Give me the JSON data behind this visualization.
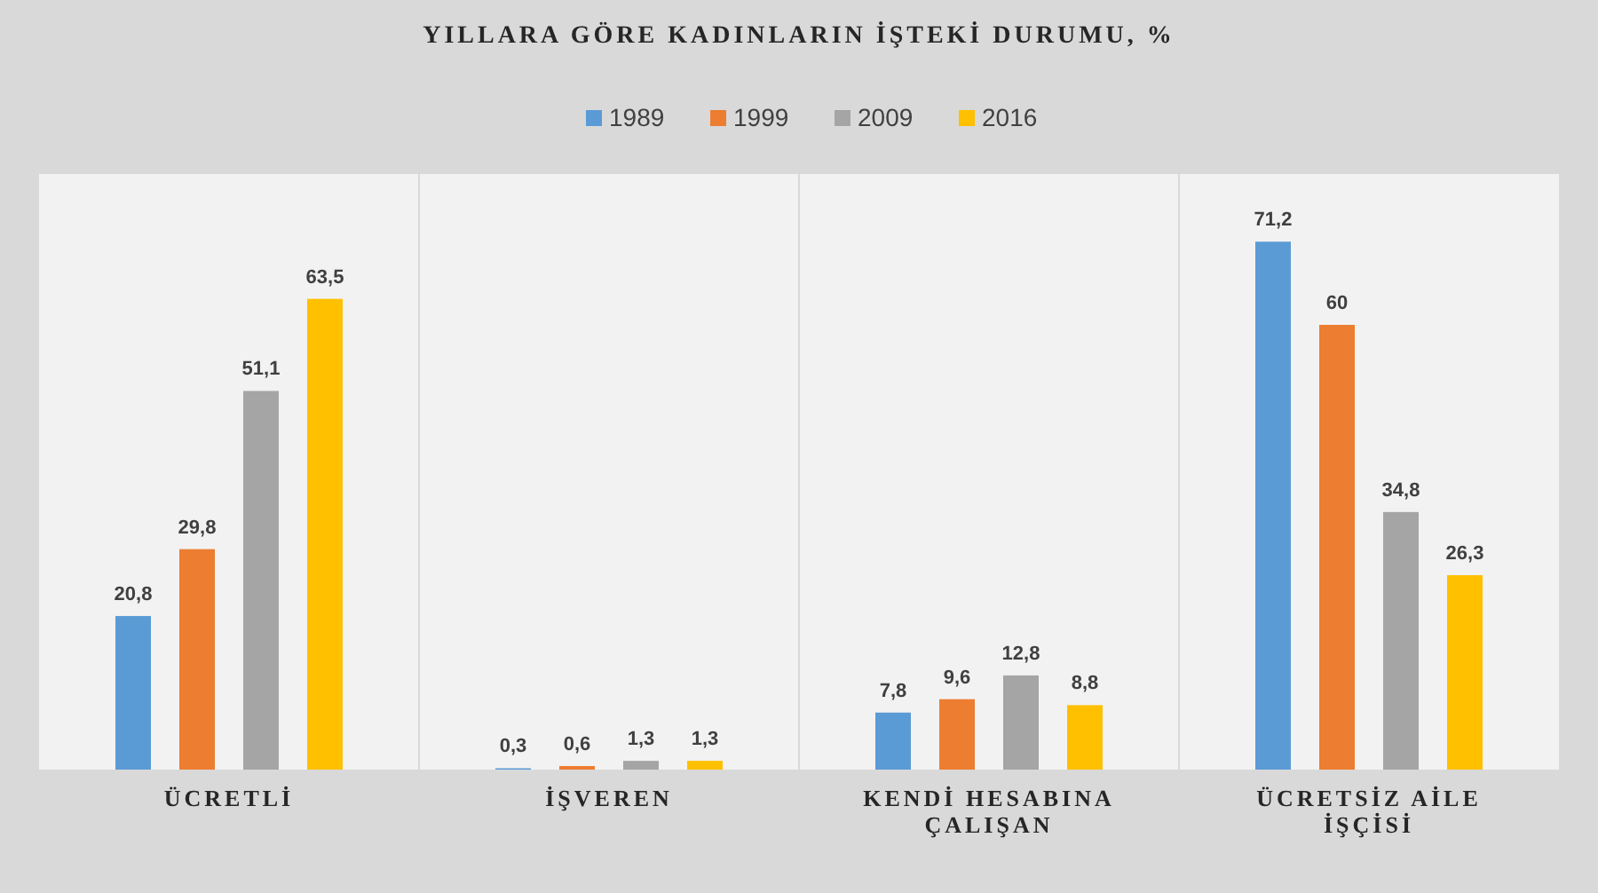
{
  "chart_data": {
    "type": "bar",
    "title": "YILLARA GÖRE KADINLARIN İŞTEKİ DURUMU, %",
    "categories": [
      "ÜCRETLİ",
      "İŞVEREN",
      "KENDİ HESABINA ÇALIŞAN",
      "ÜCRETSİZ AİLE İŞÇİSİ"
    ],
    "series": [
      {
        "name": "1989",
        "color": "#5b9bd5",
        "values": [
          20.8,
          0.3,
          7.8,
          71.2
        ],
        "value_labels": [
          "20,8",
          "0,3",
          "7,8",
          "71,2"
        ]
      },
      {
        "name": "1999",
        "color": "#ed7d31",
        "values": [
          29.8,
          0.6,
          9.6,
          60
        ],
        "value_labels": [
          "29,8",
          "0,6",
          "9,6",
          "60"
        ]
      },
      {
        "name": "2009",
        "color": "#a5a5a5",
        "values": [
          51.1,
          1.3,
          12.8,
          34.8
        ],
        "value_labels": [
          "51,1",
          "1,3",
          "12,8",
          "34,8"
        ]
      },
      {
        "name": "2016",
        "color": "#ffc000",
        "values": [
          63.5,
          1.3,
          8.8,
          26.3
        ],
        "value_labels": [
          "63,5",
          "1,3",
          "8,8",
          "26,3"
        ]
      }
    ],
    "grid": "x",
    "legend": "top"
  }
}
